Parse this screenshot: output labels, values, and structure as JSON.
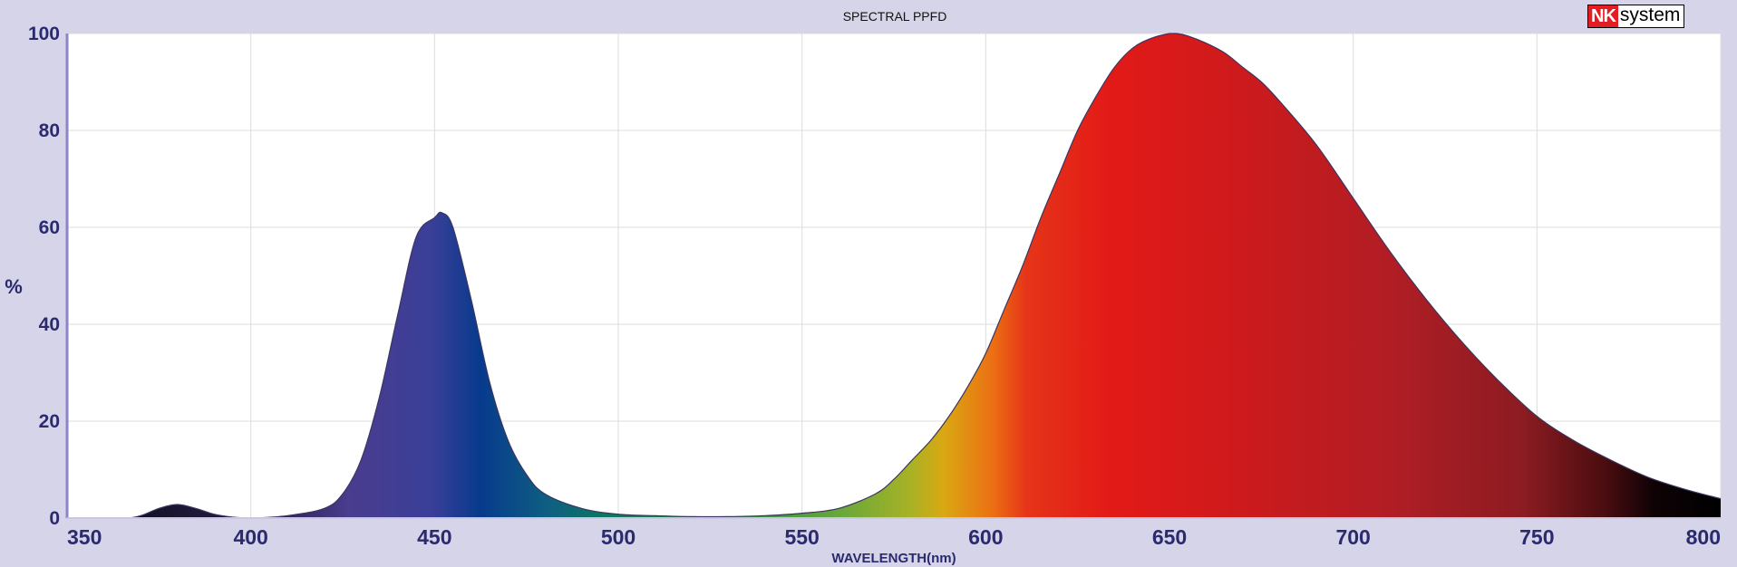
{
  "logo": {
    "part1": "NK",
    "part2": "system"
  },
  "chart_data": {
    "type": "area",
    "title": "SPECTRAL PPFD",
    "xlabel": "WAVELENGTH(nm)",
    "ylabel": "%",
    "xlim": [
      350,
      800
    ],
    "ylim": [
      0,
      100
    ],
    "grid": true,
    "xticks": [
      "350",
      "400",
      "450",
      "500",
      "550",
      "600",
      "650",
      "700",
      "750",
      "800"
    ],
    "yticks": [
      "0",
      "20",
      "40",
      "60",
      "80",
      "100"
    ],
    "series": [
      {
        "x": [
          350,
          365,
          370,
          375,
          380,
          385,
          390,
          395,
          400,
          410,
          420,
          425,
          430,
          435,
          440,
          445,
          450,
          452,
          455,
          460,
          465,
          470,
          475,
          480,
          490,
          500,
          510,
          520,
          530,
          540,
          550,
          560,
          570,
          575,
          580,
          585,
          590,
          595,
          600,
          605,
          610,
          615,
          620,
          625,
          630,
          635,
          640,
          645,
          650,
          652,
          655,
          660,
          665,
          670,
          675,
          680,
          690,
          700,
          710,
          720,
          730,
          740,
          750,
          760,
          770,
          780,
          790,
          800
        ],
        "y": [
          0,
          0,
          0.5,
          2,
          2.8,
          2,
          0.8,
          0.2,
          0,
          0.5,
          2,
          5,
          12,
          25,
          42,
          58,
          62,
          63,
          60,
          45,
          28,
          16,
          9,
          5,
          2,
          0.8,
          0.5,
          0.3,
          0.3,
          0.5,
          1,
          2,
          5,
          8,
          12,
          16,
          21,
          27,
          34,
          43,
          52,
          62,
          71,
          80,
          87,
          93,
          97,
          99,
          100,
          100,
          99.5,
          98,
          96,
          93,
          90,
          86,
          77,
          66,
          55,
          45,
          36,
          28,
          21,
          16,
          12,
          8.5,
          6,
          4
        ]
      }
    ]
  }
}
